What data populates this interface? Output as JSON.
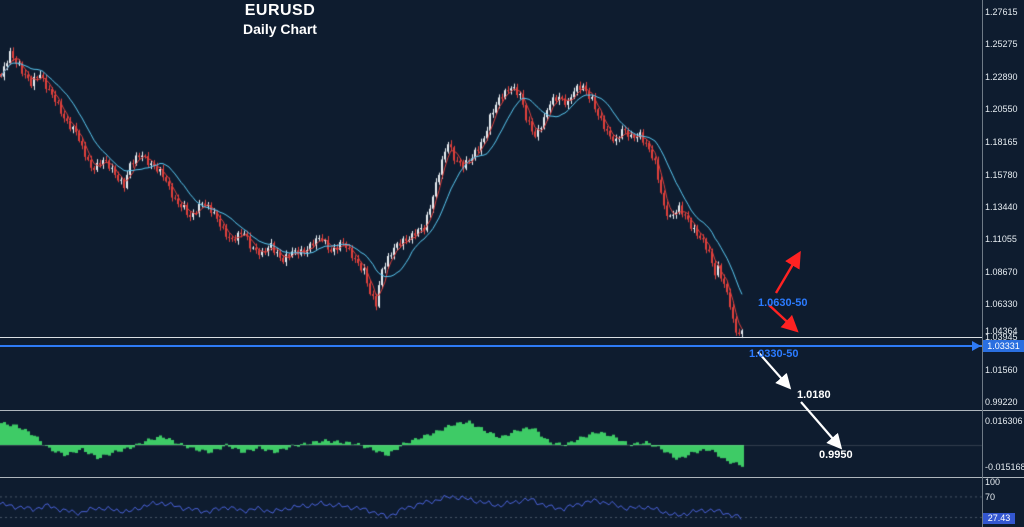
{
  "header": {
    "symbol": "EURUSD",
    "subtitle": "Daily Chart"
  },
  "colors": {
    "background": "#0e1c2f",
    "candle_up": "#e9eef3",
    "candle_down": "#e0403c",
    "ma_fast": "#e0403c",
    "ma_slow": "#59c9f2",
    "histogram": "#3ecb66",
    "rsi": "#4a62d8",
    "level_blue": "#2e7bf6",
    "level_white": "#d9dee3",
    "tag_blue_bg": "#2a6fe0",
    "separator": "#aeb6bd",
    "axis_text": "#e6ecf1",
    "annotation_blue": "#2b7bff",
    "annotation_white": "#ffffff",
    "arrow_red": "#ff2222"
  },
  "axis": {
    "current_price_tag": "1.04364",
    "line_price_tag": "1.03331"
  },
  "levels": {
    "blue_line_price": 1.03331,
    "white_line_price": 1.0395
  },
  "annotations": {
    "zone_upper_label": "1.0630-50",
    "zone_lower_label": "1.0330-50",
    "target_1_label": "1.0180",
    "target_2_label": "0.9950"
  },
  "chart_data": {
    "type": "candlestick",
    "title": "EURUSD",
    "subtitle": "Daily Chart",
    "y_axis": {
      "top_price": 1.27615,
      "labels": [
        "1.27615",
        "1.25275",
        "1.22890",
        "1.20550",
        "1.18165",
        "1.15780",
        "1.13440",
        "1.11055",
        "1.08670",
        "1.06330",
        "1.03945",
        "1.01560",
        "0.99220"
      ]
    },
    "candle_count": 248,
    "price_path": [
      [
        0,
        1.229
      ],
      [
        3,
        1.245
      ],
      [
        6,
        1.238
      ],
      [
        10,
        1.223
      ],
      [
        13,
        1.231
      ],
      [
        17,
        1.216
      ],
      [
        21,
        1.198
      ],
      [
        25,
        1.19
      ],
      [
        27,
        1.176
      ],
      [
        30,
        1.162
      ],
      [
        34,
        1.169
      ],
      [
        38,
        1.157
      ],
      [
        41,
        1.151
      ],
      [
        43,
        1.165
      ],
      [
        47,
        1.172
      ],
      [
        51,
        1.164
      ],
      [
        54,
        1.156
      ],
      [
        58,
        1.14
      ],
      [
        61,
        1.133
      ],
      [
        63,
        1.125
      ],
      [
        67,
        1.139
      ],
      [
        70,
        1.131
      ],
      [
        74,
        1.118
      ],
      [
        77,
        1.11
      ],
      [
        81,
        1.115
      ],
      [
        83,
        1.107
      ],
      [
        87,
        1.099
      ],
      [
        90,
        1.106
      ],
      [
        94,
        1.096
      ],
      [
        97,
        1.1
      ],
      [
        101,
        1.103
      ],
      [
        105,
        1.109
      ],
      [
        107,
        1.111
      ],
      [
        110,
        1.103
      ],
      [
        114,
        1.107
      ],
      [
        118,
        1.097
      ],
      [
        121,
        1.087
      ],
      [
        123,
        1.07
      ],
      [
        125,
        1.064
      ],
      [
        127,
        1.09
      ],
      [
        131,
        1.103
      ],
      [
        134,
        1.11
      ],
      [
        138,
        1.115
      ],
      [
        141,
        1.118
      ],
      [
        143,
        1.135
      ],
      [
        146,
        1.16
      ],
      [
        149,
        1.18
      ],
      [
        151,
        1.17
      ],
      [
        154,
        1.165
      ],
      [
        157,
        1.169
      ],
      [
        161,
        1.185
      ],
      [
        163,
        1.2
      ],
      [
        167,
        1.215
      ],
      [
        170,
        1.223
      ],
      [
        173,
        1.215
      ],
      [
        175,
        1.198
      ],
      [
        178,
        1.187
      ],
      [
        181,
        1.198
      ],
      [
        183,
        1.209
      ],
      [
        186,
        1.215
      ],
      [
        189,
        1.21
      ],
      [
        191,
        1.218
      ],
      [
        194,
        1.222
      ],
      [
        197,
        1.213
      ],
      [
        199,
        1.2
      ],
      [
        202,
        1.188
      ],
      [
        205,
        1.183
      ],
      [
        207,
        1.19
      ],
      [
        210,
        1.184
      ],
      [
        213,
        1.188
      ],
      [
        215,
        1.18
      ],
      [
        218,
        1.165
      ],
      [
        221,
        1.135
      ],
      [
        223,
        1.127
      ],
      [
        226,
        1.132
      ],
      [
        229,
        1.125
      ],
      [
        231,
        1.118
      ],
      [
        234,
        1.108
      ],
      [
        236,
        1.1
      ],
      [
        238,
        1.087
      ],
      [
        239,
        1.091
      ],
      [
        241,
        1.078
      ],
      [
        242,
        1.07
      ],
      [
        243,
        1.062
      ],
      [
        244,
        1.05
      ],
      [
        245,
        1.043
      ],
      [
        247,
        1.0436
      ]
    ],
    "overlays": [
      {
        "name": "fast-ma",
        "color_key": "ma_fast",
        "period": 4
      },
      {
        "name": "slow-ma",
        "color_key": "ma_slow",
        "period": 12
      }
    ],
    "sub_indicators": [
      {
        "name": "oscillator-histogram",
        "max_label": "0.016306",
        "min_label": "-0.015168",
        "values": [
          0.015,
          0.013,
          0.007,
          -0.003,
          -0.007,
          -0.003,
          -0.009,
          -0.005,
          -0.002,
          0.003,
          0.006,
          0.001,
          -0.003,
          -0.005,
          0.0,
          -0.005,
          -0.002,
          -0.005,
          -0.001,
          0.001,
          0.003,
          0.002,
          0.001,
          -0.003,
          -0.007,
          0.001,
          0.005,
          0.009,
          0.014,
          0.016,
          0.01,
          0.005,
          0.01,
          0.012,
          0.002,
          0.0,
          0.005,
          0.009,
          0.006,
          0.0,
          0.002,
          -0.003,
          -0.01,
          -0.005,
          -0.003,
          -0.011,
          -0.014
        ]
      },
      {
        "name": "rsi-line",
        "levels": [
          "100",
          "70",
          "30"
        ],
        "current_value_tag": "27.43",
        "values": [
          55,
          50,
          45,
          52,
          42,
          38,
          48,
          44,
          40,
          52,
          58,
          50,
          44,
          40,
          50,
          42,
          46,
          40,
          48,
          52,
          56,
          52,
          48,
          42,
          30,
          45,
          55,
          62,
          70,
          65,
          58,
          52,
          60,
          64,
          50,
          46,
          56,
          62,
          55,
          46,
          50,
          42,
          32,
          40,
          44,
          38,
          28
        ]
      }
    ]
  }
}
